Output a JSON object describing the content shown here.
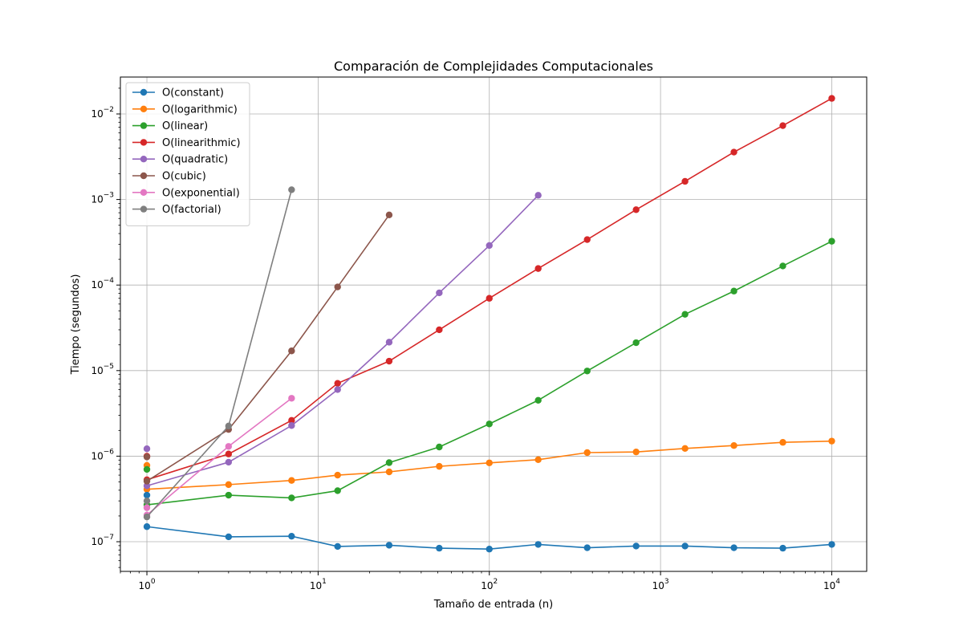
{
  "chart_data": {
    "type": "line",
    "title": "Comparación de Complejidades Computacionales",
    "xlabel": "Tamaño de entrada (n)",
    "ylabel": "Tiempo (segundos)",
    "xscale": "log",
    "yscale": "log",
    "xlim": [
      0.7,
      16000
    ],
    "ylim": [
      4.5e-08,
      0.027
    ],
    "x_ticks": [
      {
        "value": 1,
        "base": "10",
        "exp": "0"
      },
      {
        "value": 10,
        "base": "10",
        "exp": "1"
      },
      {
        "value": 100,
        "base": "10",
        "exp": "2"
      },
      {
        "value": 1000,
        "base": "10",
        "exp": "3"
      },
      {
        "value": 10000,
        "base": "10",
        "exp": "4"
      }
    ],
    "y_ticks": [
      {
        "value": 1e-07,
        "base": "10",
        "exp": "−7"
      },
      {
        "value": 1e-06,
        "base": "10",
        "exp": "−6"
      },
      {
        "value": 1e-05,
        "base": "10",
        "exp": "−5"
      },
      {
        "value": 0.0001,
        "base": "10",
        "exp": "−4"
      },
      {
        "value": 0.001,
        "base": "10",
        "exp": "−3"
      },
      {
        "value": 0.01,
        "base": "10",
        "exp": "−2"
      }
    ],
    "grid": true,
    "legend_position": "top-left",
    "series": [
      {
        "name": "O(constant)",
        "color": "#1f77b4",
        "points": [
          [
            1,
            1.5e-07
          ],
          [
            3,
            1.14e-07
          ],
          [
            7,
            1.16e-07
          ],
          [
            13,
            8.8e-08
          ],
          [
            26,
            9.1e-08
          ],
          [
            51,
            8.4e-08
          ],
          [
            100,
            8.2e-08
          ],
          [
            193,
            9.3e-08
          ],
          [
            373,
            8.5e-08
          ],
          [
            720,
            8.9e-08
          ],
          [
            1390,
            8.9e-08
          ],
          [
            2683,
            8.5e-08
          ],
          [
            5180,
            8.4e-08
          ],
          [
            10000,
            9.3e-08
          ]
        ]
      },
      {
        "name": "O(logarithmic)",
        "color": "#ff7f0e",
        "points": [
          [
            1,
            4.1e-07
          ],
          [
            3,
            4.65e-07
          ],
          [
            7,
            5.2e-07
          ],
          [
            13,
            6e-07
          ],
          [
            26,
            6.55e-07
          ],
          [
            51,
            7.6e-07
          ],
          [
            100,
            8.35e-07
          ],
          [
            193,
            9.1e-07
          ],
          [
            373,
            1.1e-06
          ],
          [
            720,
            1.12e-06
          ],
          [
            1390,
            1.23e-06
          ],
          [
            2683,
            1.33e-06
          ],
          [
            5180,
            1.45e-06
          ],
          [
            10000,
            1.5e-06
          ]
        ]
      },
      {
        "name": "O(linear)",
        "color": "#2ca02c",
        "points": [
          [
            1,
            2.7e-07
          ],
          [
            3,
            3.5e-07
          ],
          [
            7,
            3.25e-07
          ],
          [
            13,
            3.95e-07
          ],
          [
            26,
            8.4e-07
          ],
          [
            51,
            1.28e-06
          ],
          [
            100,
            2.38e-06
          ],
          [
            193,
            4.5e-06
          ],
          [
            373,
            9.9e-06
          ],
          [
            720,
            2.12e-05
          ],
          [
            1390,
            4.55e-05
          ],
          [
            2683,
            8.5e-05
          ],
          [
            5180,
            0.000167
          ],
          [
            10000,
            0.000325
          ]
        ]
      },
      {
        "name": "O(linearithmic)",
        "color": "#d62728",
        "points": [
          [
            1,
            5.3e-07
          ],
          [
            3,
            1.06e-06
          ],
          [
            7,
            2.62e-06
          ],
          [
            13,
            7.1e-06
          ],
          [
            26,
            1.29e-05
          ],
          [
            51,
            3e-05
          ],
          [
            100,
            7e-05
          ],
          [
            193,
            0.000156
          ],
          [
            373,
            0.00034
          ],
          [
            720,
            0.00076
          ],
          [
            1390,
            0.00163
          ],
          [
            2683,
            0.00358
          ],
          [
            5180,
            0.0073
          ],
          [
            10000,
            0.0152
          ]
        ]
      },
      {
        "name": "O(quadratic)",
        "color": "#9467bd",
        "points": [
          [
            1,
            4.5e-07
          ],
          [
            3,
            8.5e-07
          ],
          [
            7,
            2.28e-06
          ],
          [
            13,
            6e-06
          ],
          [
            26,
            2.15e-05
          ],
          [
            51,
            8.1e-05
          ],
          [
            100,
            0.00029
          ],
          [
            193,
            0.00112
          ]
        ]
      },
      {
        "name": "O(cubic)",
        "color": "#8c564b",
        "points": [
          [
            1,
            5.1e-07
          ],
          [
            3,
            2.05e-06
          ],
          [
            7,
            1.7e-05
          ],
          [
            13,
            9.5e-05
          ],
          [
            26,
            0.00066
          ]
        ]
      },
      {
        "name": "O(exponential)",
        "color": "#e377c2",
        "points": [
          [
            1,
            2.05e-07
          ],
          [
            3,
            1.3e-06
          ],
          [
            7,
            4.75e-06
          ]
        ]
      },
      {
        "name": "O(factorial)",
        "color": "#7f7f7f",
        "points": [
          [
            1,
            1.95e-07
          ],
          [
            3,
            2.25e-06
          ],
          [
            7,
            0.0013
          ]
        ]
      }
    ],
    "scatter_extra": [
      {
        "series": "O(constant)",
        "x": 1,
        "y": 3.5e-07
      },
      {
        "series": "O(logarithmic)",
        "x": 1,
        "y": 7.8e-07
      },
      {
        "series": "O(linear)",
        "x": 1,
        "y": 7e-07
      },
      {
        "series": "O(linearithmic)",
        "x": 1,
        "y": 1e-06
      },
      {
        "series": "O(quadratic)",
        "x": 1,
        "y": 1.22e-06
      },
      {
        "series": "O(cubic)",
        "x": 1,
        "y": 9.8e-07
      },
      {
        "series": "O(exponential)",
        "x": 1,
        "y": 2.5e-07
      },
      {
        "series": "O(factorial)",
        "x": 1,
        "y": 3e-07
      }
    ]
  }
}
